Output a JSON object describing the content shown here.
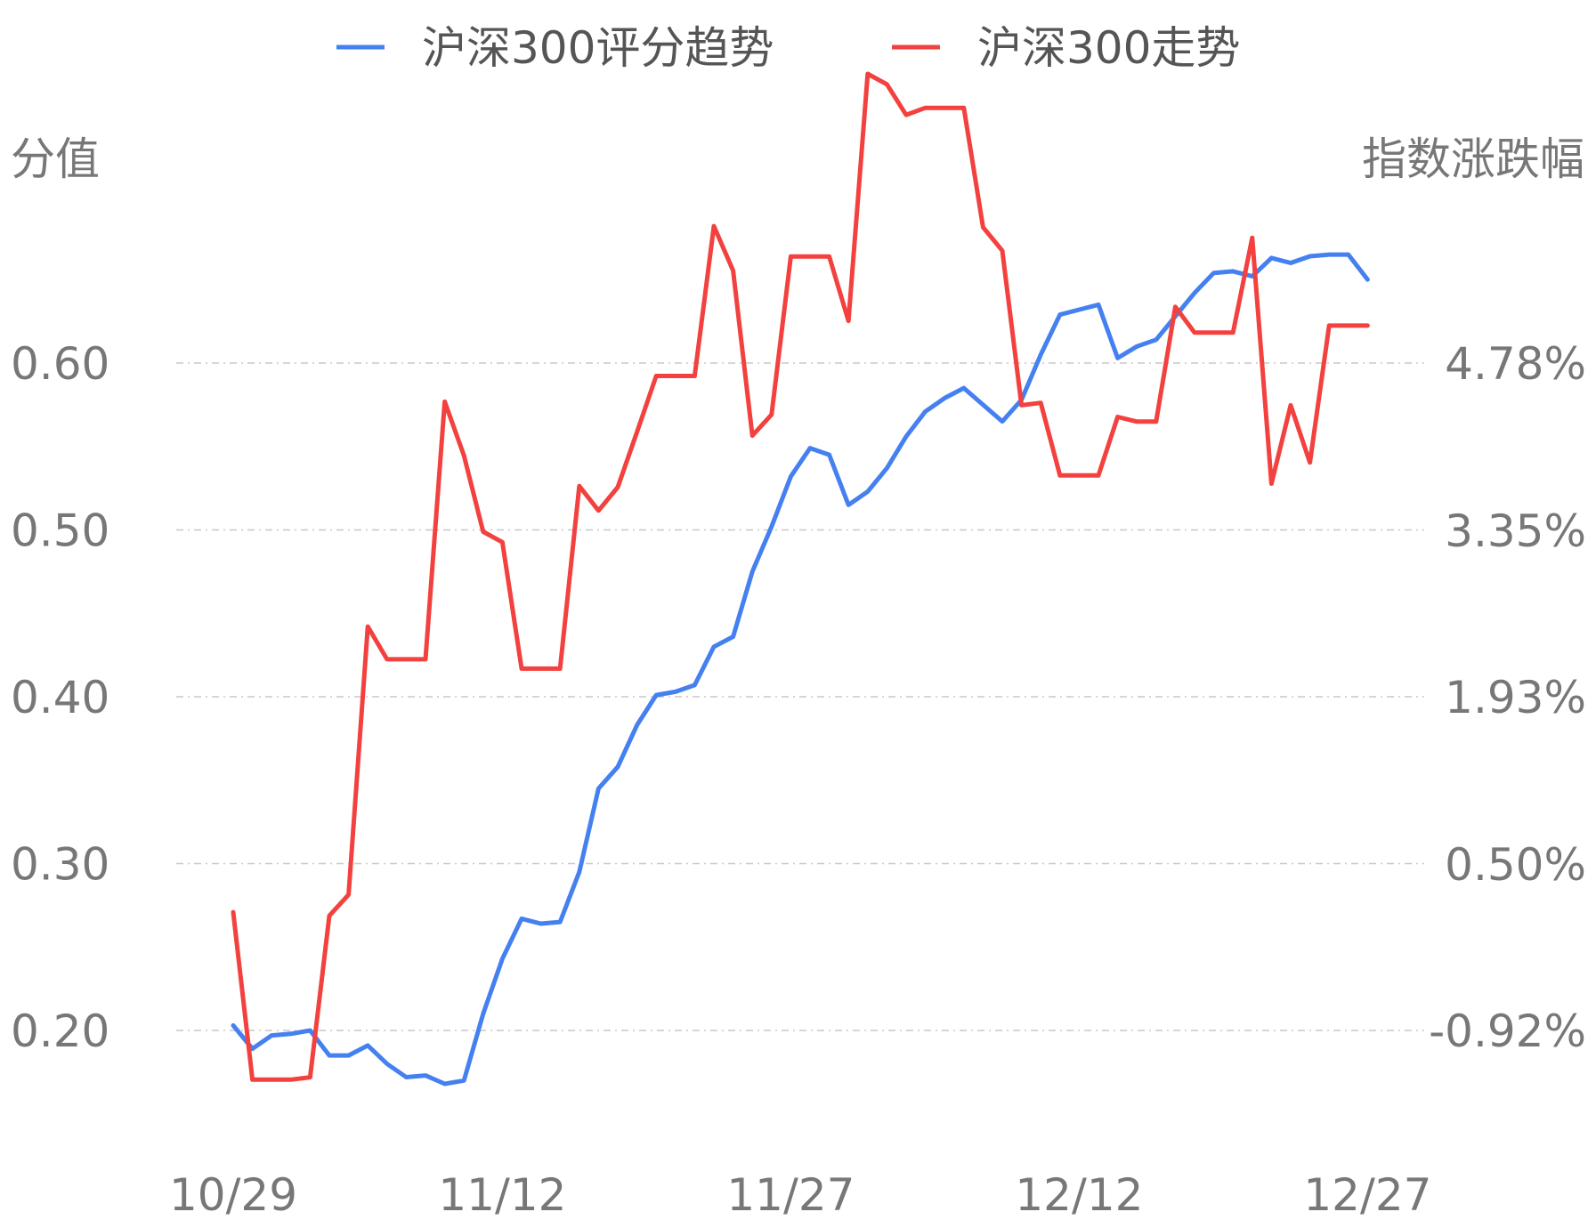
{
  "chart_data": {
    "type": "line",
    "legend": [
      {
        "name": "沪深300评分趋势",
        "color": "#4580f0"
      },
      {
        "name": "沪深300走势",
        "color": "#f2413e"
      }
    ],
    "legend_position": "top-center",
    "ylabel_left": "分值",
    "ylabel_right": "指数涨跌幅",
    "x_tick_labels": [
      "10/29",
      "11/12",
      "11/27",
      "12/12",
      "12/27"
    ],
    "x_tick_index": [
      0,
      14,
      29,
      44,
      59
    ],
    "left_ticks": [
      "0.60",
      "0.50",
      "0.40",
      "0.30",
      "0.20"
    ],
    "left_tick_values": [
      0.6,
      0.5,
      0.4,
      0.3,
      0.2
    ],
    "right_ticks": [
      "4.78%",
      "3.35%",
      "1.93%",
      "0.50%",
      "-0.92%"
    ],
    "right_tick_values": [
      4.78,
      3.35,
      1.93,
      0.5,
      -0.92
    ],
    "grid": true,
    "series": [
      {
        "name": "沪深300评分趋势",
        "axis": "left",
        "color": "#4580f0",
        "values": [
          0.203,
          0.189,
          0.197,
          0.198,
          0.2,
          0.185,
          0.185,
          0.191,
          0.18,
          0.172,
          0.173,
          0.168,
          0.17,
          0.21,
          0.243,
          0.267,
          0.264,
          0.265,
          0.295,
          0.345,
          0.358,
          0.383,
          0.401,
          0.403,
          0.407,
          0.43,
          0.436,
          0.475,
          0.502,
          0.532,
          0.549,
          0.545,
          0.515,
          0.523,
          0.537,
          0.556,
          0.571,
          0.579,
          0.585,
          0.575,
          0.565,
          0.578,
          0.605,
          0.629,
          0.632,
          0.635,
          0.603,
          0.61,
          0.614,
          0.628,
          0.642,
          0.654,
          0.655,
          0.652,
          0.663,
          0.66,
          0.664,
          0.665,
          0.665,
          0.65
        ]
      },
      {
        "name": "沪深300走势",
        "axis": "right",
        "color": "#f2413e",
        "values": [
          0.09,
          -1.34,
          -1.34,
          -1.34,
          -1.32,
          0.06,
          0.24,
          2.53,
          2.25,
          2.25,
          2.25,
          4.45,
          3.99,
          3.34,
          3.25,
          2.17,
          2.17,
          2.17,
          3.73,
          3.52,
          3.72,
          4.19,
          4.67,
          4.67,
          4.67,
          5.95,
          5.57,
          4.16,
          4.34,
          5.69,
          5.69,
          5.69,
          5.14,
          7.25,
          7.16,
          6.9,
          6.96,
          6.96,
          6.96,
          5.94,
          5.74,
          4.42,
          4.44,
          3.82,
          3.82,
          3.82,
          4.32,
          4.28,
          4.28,
          5.26,
          5.04,
          5.04,
          5.04,
          5.85,
          3.75,
          4.42,
          3.93,
          5.1,
          5.1,
          5.1
        ]
      }
    ]
  }
}
